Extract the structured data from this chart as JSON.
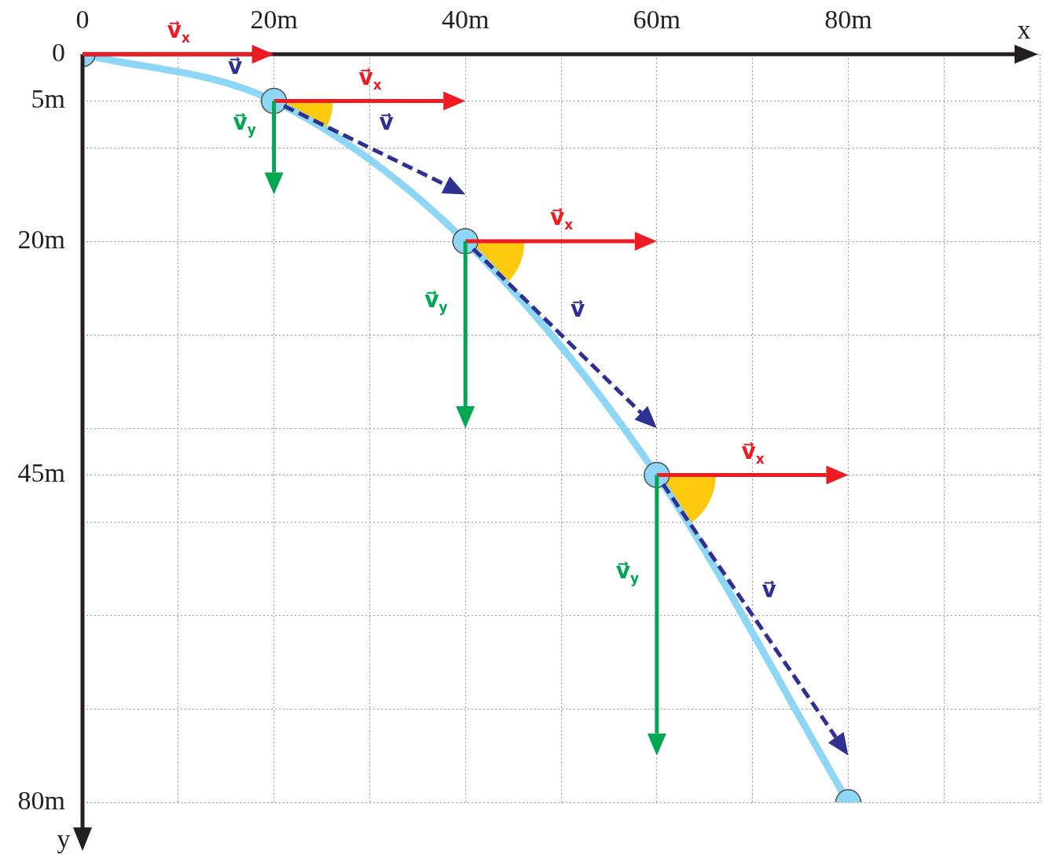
{
  "chart_data": {
    "type": "line",
    "xlabel": "x",
    "ylabel": "y",
    "xlim": [
      0,
      100
    ],
    "ylim": [
      80,
      0
    ],
    "xticks": [
      0,
      {
        "value": 10,
        "label": null
      },
      {
        "value": 20,
        "label": "20m"
      },
      {
        "value": 30,
        "label": null
      },
      {
        "value": 40,
        "label": "40m"
      },
      {
        "value": 50,
        "label": null
      },
      {
        "value": 60,
        "label": "60m"
      },
      {
        "value": 70,
        "label": null
      },
      {
        "value": 80,
        "label": "80m"
      },
      {
        "value": 90,
        "label": null
      },
      {
        "value": 100,
        "label": null
      }
    ],
    "yticks": [
      0,
      {
        "value": 5,
        "label": "5m"
      },
      {
        "value": 10,
        "label": null
      },
      {
        "value": 20,
        "label": "20m"
      },
      {
        "value": 30,
        "label": null
      },
      {
        "value": 40,
        "label": null
      },
      {
        "value": 45,
        "label": "45m"
      },
      {
        "value": 50,
        "label": null
      },
      {
        "value": 60,
        "label": null
      },
      {
        "value": 70,
        "label": null
      },
      {
        "value": 80,
        "label": "80m"
      }
    ],
    "grid": true,
    "legend": false,
    "marker": "circle",
    "line_style": "solid",
    "annotations": [
      "v⃗$_{x}$",
      {
        "text": "v⃗",
        "x": 16,
        "y": 3.2
      },
      "v⃗$_{x}$",
      "v⃗$_{y}$",
      "v⃗",
      "v⃗$_{x}$",
      "v⃗$_{y}$",
      "v⃗",
      "v⃗$_{x}$",
      "v⃗$_{y}$",
      "v⃗"
    ],
    "series": [
      {
        "color": "#8dd6f5",
        "x": [
          0,
          20,
          40,
          60,
          80
        ],
        "values": [
          0,
          5,
          20,
          45,
          80
        ]
      }
    ]
  }
}
